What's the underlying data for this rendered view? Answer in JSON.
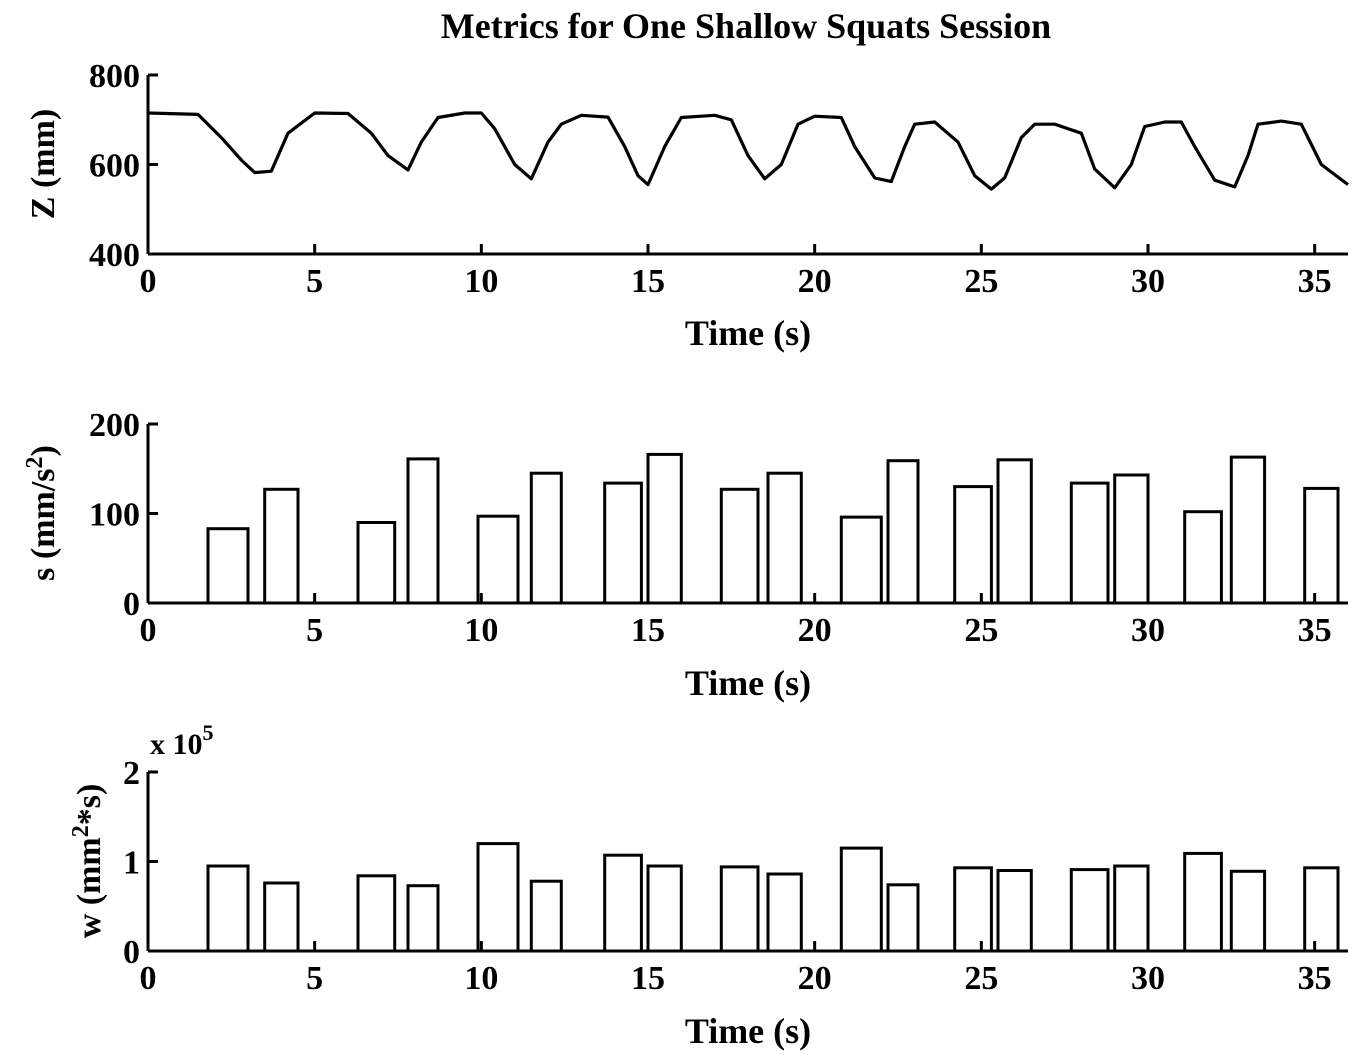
{
  "figure": {
    "title": "Metrics for One Shallow Squats Session"
  },
  "chart_data": [
    {
      "type": "line",
      "title": "Metrics for One Shallow Squats Session",
      "xlabel": "Time (s)",
      "ylabel": "Z (mm)",
      "xlim": [
        0,
        36
      ],
      "ylim": [
        400,
        800
      ],
      "xticks": [
        "0",
        "5",
        "10",
        "15",
        "20",
        "25",
        "30",
        "35"
      ],
      "yticks": [
        "400",
        "600",
        "800"
      ],
      "grid": false,
      "series": [
        {
          "x": [
            0,
            1.5,
            2.2,
            2.8,
            3.2,
            3.7,
            4.2,
            5,
            6,
            6.7,
            7.2,
            7.8,
            8.2,
            8.7,
            9.5,
            10,
            10.4,
            11,
            11.5,
            12,
            12.4,
            13,
            13.8,
            14.3,
            14.7,
            15,
            15.5,
            16,
            17,
            17.5,
            18,
            18.5,
            19,
            19.5,
            20,
            20.8,
            21.2,
            21.8,
            22.3,
            22.7,
            23,
            23.6,
            24.3,
            24.8,
            25.3,
            25.7,
            26.2,
            26.6,
            27.2,
            28,
            28.4,
            29,
            29.5,
            29.9,
            30.5,
            31,
            31.4,
            32,
            32.6,
            33,
            33.3,
            34,
            34.6,
            35.2,
            36
          ],
          "y": [
            715,
            712,
            660,
            610,
            582,
            585,
            670,
            715,
            714,
            670,
            620,
            588,
            650,
            705,
            715,
            715,
            680,
            600,
            568,
            650,
            690,
            710,
            706,
            640,
            575,
            555,
            640,
            705,
            710,
            700,
            620,
            568,
            600,
            690,
            708,
            705,
            640,
            570,
            562,
            640,
            690,
            695,
            650,
            575,
            545,
            570,
            660,
            690,
            690,
            670,
            590,
            548,
            600,
            685,
            695,
            695,
            640,
            565,
            550,
            620,
            690,
            697,
            690,
            600,
            555
          ]
        }
      ]
    },
    {
      "type": "bar",
      "xlabel": "Time (s)",
      "ylabel": "s (mm/s",
      "ylabel_sup": "2",
      "ylabel_tail": ")",
      "xlim": [
        0,
        36
      ],
      "ylim": [
        0,
        200
      ],
      "xticks": [
        "0",
        "5",
        "10",
        "15",
        "20",
        "25",
        "30",
        "35"
      ],
      "yticks": [
        "0",
        "100",
        "200"
      ],
      "grid": false,
      "bars": [
        {
          "x0": 1.8,
          "x1": 3.0,
          "value": 83
        },
        {
          "x0": 3.5,
          "x1": 4.5,
          "value": 127
        },
        {
          "x0": 6.3,
          "x1": 7.4,
          "value": 90
        },
        {
          "x0": 7.8,
          "x1": 8.7,
          "value": 161
        },
        {
          "x0": 9.9,
          "x1": 11.1,
          "value": 97
        },
        {
          "x0": 11.5,
          "x1": 12.4,
          "value": 145
        },
        {
          "x0": 13.7,
          "x1": 14.8,
          "value": 134
        },
        {
          "x0": 15.0,
          "x1": 16.0,
          "value": 166
        },
        {
          "x0": 17.2,
          "x1": 18.3,
          "value": 127
        },
        {
          "x0": 18.6,
          "x1": 19.6,
          "value": 145
        },
        {
          "x0": 20.8,
          "x1": 22.0,
          "value": 96
        },
        {
          "x0": 22.2,
          "x1": 23.1,
          "value": 159
        },
        {
          "x0": 24.2,
          "x1": 25.3,
          "value": 130
        },
        {
          "x0": 25.5,
          "x1": 26.5,
          "value": 160
        },
        {
          "x0": 27.7,
          "x1": 28.8,
          "value": 134
        },
        {
          "x0": 29.0,
          "x1": 30.0,
          "value": 143
        },
        {
          "x0": 31.1,
          "x1": 32.2,
          "value": 102
        },
        {
          "x0": 32.5,
          "x1": 33.5,
          "value": 163
        },
        {
          "x0": 34.7,
          "x1": 35.7,
          "value": 128
        }
      ]
    },
    {
      "type": "bar",
      "xlabel": "Time (s)",
      "ylabel": "w (mm",
      "ylabel_sup": "2",
      "ylabel_tail": "*s)",
      "xlim": [
        0,
        36
      ],
      "ylim": [
        0,
        2
      ],
      "y_multiplier": "x 10",
      "y_multiplier_exp": "5",
      "xticks": [
        "0",
        "5",
        "10",
        "15",
        "20",
        "25",
        "30",
        "35"
      ],
      "yticks": [
        "0",
        "1",
        "2"
      ],
      "grid": false,
      "bars": [
        {
          "x0": 1.8,
          "x1": 3.0,
          "value": 0.95
        },
        {
          "x0": 3.5,
          "x1": 4.5,
          "value": 0.76
        },
        {
          "x0": 6.3,
          "x1": 7.4,
          "value": 0.84
        },
        {
          "x0": 7.8,
          "x1": 8.7,
          "value": 0.73
        },
        {
          "x0": 9.9,
          "x1": 11.1,
          "value": 1.2
        },
        {
          "x0": 11.5,
          "x1": 12.4,
          "value": 0.78
        },
        {
          "x0": 13.7,
          "x1": 14.8,
          "value": 1.07
        },
        {
          "x0": 15.0,
          "x1": 16.0,
          "value": 0.95
        },
        {
          "x0": 17.2,
          "x1": 18.3,
          "value": 0.94
        },
        {
          "x0": 18.6,
          "x1": 19.6,
          "value": 0.86
        },
        {
          "x0": 20.8,
          "x1": 22.0,
          "value": 1.15
        },
        {
          "x0": 22.2,
          "x1": 23.1,
          "value": 0.74
        },
        {
          "x0": 24.2,
          "x1": 25.3,
          "value": 0.93
        },
        {
          "x0": 25.5,
          "x1": 26.5,
          "value": 0.9
        },
        {
          "x0": 27.7,
          "x1": 28.8,
          "value": 0.91
        },
        {
          "x0": 29.0,
          "x1": 30.0,
          "value": 0.95
        },
        {
          "x0": 31.1,
          "x1": 32.2,
          "value": 1.09
        },
        {
          "x0": 32.5,
          "x1": 33.5,
          "value": 0.89
        },
        {
          "x0": 34.7,
          "x1": 35.7,
          "value": 0.93
        }
      ]
    }
  ]
}
